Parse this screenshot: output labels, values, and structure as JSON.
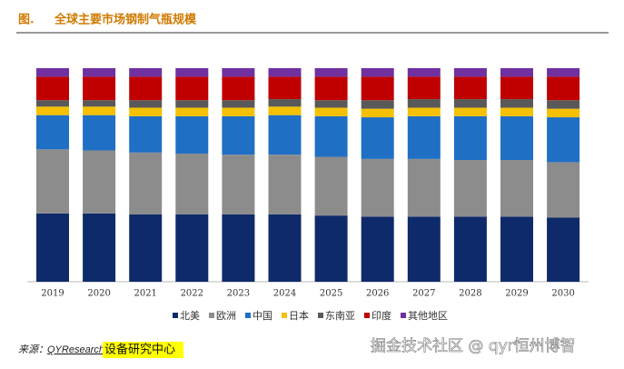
{
  "chart_data": {
    "type": "stacked_bar",
    "figure_label": "图.",
    "title": "全球主要市场钢制气瓶规模",
    "categories": [
      "2019",
      "2020",
      "2021",
      "2022",
      "2023",
      "2024",
      "2025",
      "2026",
      "2027",
      "2028",
      "2029",
      "2030"
    ],
    "series": [
      {
        "name": "北美",
        "color": "#0e2a6a",
        "values": [
          32,
          32,
          31.5,
          31.5,
          31.5,
          31.5,
          31,
          30.5,
          30.5,
          30.5,
          30.5,
          30
        ]
      },
      {
        "name": "欧洲",
        "color": "#8c8c8c",
        "values": [
          30,
          29.5,
          29,
          28.5,
          28,
          28,
          27.5,
          27,
          27,
          26.5,
          26.5,
          26
        ]
      },
      {
        "name": "中国",
        "color": "#1f6fc4",
        "values": [
          16,
          16.5,
          17,
          17.5,
          18,
          18.5,
          19,
          19.5,
          20,
          20.5,
          20.5,
          21
        ]
      },
      {
        "name": "日本",
        "color": "#f4c000",
        "values": [
          4,
          4,
          4,
          4,
          4,
          4,
          4,
          4,
          4,
          4,
          4,
          4
        ]
      },
      {
        "name": "东南亚",
        "color": "#595959",
        "values": [
          3,
          3,
          3.5,
          3.5,
          3.5,
          3.5,
          3.5,
          4,
          4,
          4,
          4,
          4
        ]
      },
      {
        "name": "印度",
        "color": "#c00000",
        "values": [
          11,
          11,
          11,
          11,
          11,
          10.5,
          11,
          11,
          10.5,
          10.5,
          10.5,
          11
        ]
      },
      {
        "name": "其他地区",
        "color": "#7030a0",
        "values": [
          4,
          4,
          4,
          4,
          4,
          4,
          4,
          4,
          4,
          4,
          4,
          4
        ]
      }
    ],
    "ylim": [
      0,
      100
    ],
    "source_label": "来源：",
    "source_name": "QYResearch",
    "source_note": "设备研究中心",
    "watermark": "掘金技术社区 @ qyr恒州博智"
  }
}
